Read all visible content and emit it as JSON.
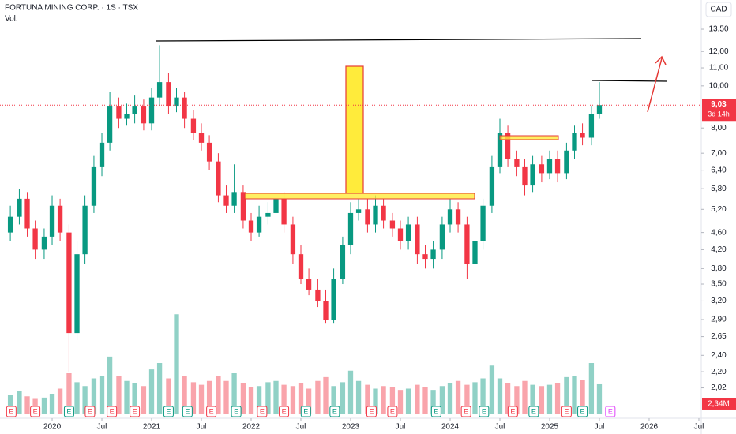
{
  "chart_data": {
    "type": "candlestick",
    "title": "FORTUNA MINING CORP. · 1S · TSX",
    "subtitle": "Vol.",
    "currency": "CAD",
    "log_scale": true,
    "grid": false,
    "up_color": "#089981",
    "down_color": "#f23645",
    "x": [
      2019.58,
      2019.67,
      2019.75,
      2019.83,
      2019.92,
      2020.0,
      2020.08,
      2020.17,
      2020.25,
      2020.33,
      2020.42,
      2020.5,
      2020.58,
      2020.67,
      2020.75,
      2020.83,
      2020.92,
      2021.0,
      2021.08,
      2021.17,
      2021.25,
      2021.33,
      2021.42,
      2021.5,
      2021.58,
      2021.67,
      2021.75,
      2021.83,
      2021.92,
      2022.0,
      2022.08,
      2022.17,
      2022.25,
      2022.33,
      2022.42,
      2022.5,
      2022.58,
      2022.67,
      2022.75,
      2022.83,
      2022.92,
      2023.0,
      2023.08,
      2023.17,
      2023.25,
      2023.33,
      2023.42,
      2023.5,
      2023.58,
      2023.67,
      2023.75,
      2023.83,
      2023.92,
      2024.0,
      2024.08,
      2024.17,
      2024.25,
      2024.33,
      2024.42,
      2024.5,
      2024.58,
      2024.67,
      2024.75,
      2024.83,
      2024.92,
      2025.0,
      2025.08,
      2025.17,
      2025.25,
      2025.33,
      2025.42,
      2025.5
    ],
    "open": [
      4.6,
      5.0,
      5.5,
      4.7,
      4.2,
      4.5,
      5.3,
      4.6,
      2.7,
      4.1,
      5.3,
      6.5,
      7.4,
      9.0,
      8.4,
      8.6,
      9.0,
      8.2,
      9.4,
      10.2,
      9.0,
      9.4,
      8.4,
      7.8,
      7.4,
      6.7,
      5.6,
      5.3,
      5.7,
      4.9,
      4.6,
      5.0,
      5.1,
      5.5,
      4.8,
      4.1,
      3.6,
      3.4,
      3.2,
      2.9,
      3.6,
      4.3,
      5.1,
      5.2,
      4.8,
      5.3,
      4.9,
      4.7,
      4.4,
      4.8,
      4.1,
      4.0,
      4.2,
      4.8,
      5.2,
      4.8,
      3.9,
      4.4,
      5.3,
      6.5,
      7.8,
      6.8,
      6.5,
      5.9,
      6.6,
      6.3,
      6.8,
      6.3,
      7.1,
      7.8,
      7.6,
      8.6
    ],
    "high": [
      5.3,
      5.8,
      5.7,
      4.9,
      4.7,
      5.6,
      5.5,
      4.8,
      4.4,
      5.6,
      6.9,
      7.8,
      9.7,
      9.4,
      9.1,
      9.5,
      9.3,
      9.9,
      12.4,
      10.7,
      9.9,
      9.7,
      8.8,
      8.2,
      7.7,
      7.0,
      5.9,
      6.6,
      5.9,
      5.1,
      5.3,
      5.4,
      5.8,
      5.7,
      5.0,
      4.3,
      3.8,
      3.6,
      3.4,
      3.8,
      4.5,
      5.4,
      5.5,
      5.5,
      5.6,
      5.5,
      5.1,
      4.9,
      5.0,
      5.0,
      4.3,
      4.4,
      5.0,
      5.5,
      5.4,
      5.0,
      4.6,
      5.5,
      6.9,
      8.4,
      8.1,
      7.1,
      6.8,
      6.9,
      6.9,
      7.1,
      7.1,
      7.4,
      8.1,
      8.2,
      9.0,
      10.2
    ],
    "low": [
      4.4,
      4.8,
      4.5,
      4.0,
      4.0,
      4.3,
      4.4,
      2.2,
      2.6,
      3.9,
      5.1,
      6.2,
      7.1,
      8.0,
      8.1,
      8.2,
      7.9,
      7.9,
      9.0,
      8.6,
      8.7,
      8.0,
      7.5,
      7.1,
      6.4,
      5.4,
      5.1,
      5.1,
      4.7,
      4.4,
      4.5,
      4.8,
      4.9,
      4.6,
      3.9,
      3.5,
      3.3,
      3.1,
      2.85,
      2.85,
      3.5,
      4.1,
      4.9,
      4.6,
      4.6,
      4.7,
      4.5,
      4.2,
      4.2,
      3.9,
      3.8,
      3.8,
      4.0,
      4.6,
      4.6,
      3.6,
      3.7,
      4.2,
      5.1,
      6.3,
      6.5,
      6.2,
      5.6,
      5.7,
      6.0,
      6.1,
      6.0,
      6.1,
      6.8,
      7.3,
      7.3,
      8.4
    ],
    "close": [
      5.0,
      5.5,
      4.7,
      4.2,
      4.5,
      5.3,
      4.6,
      2.7,
      4.1,
      5.3,
      6.5,
      7.4,
      9.0,
      8.4,
      8.6,
      9.0,
      8.2,
      9.4,
      10.2,
      9.0,
      9.4,
      8.4,
      7.8,
      7.4,
      6.7,
      5.6,
      5.3,
      5.7,
      4.9,
      4.6,
      5.0,
      5.1,
      5.5,
      4.8,
      4.1,
      3.6,
      3.4,
      3.2,
      2.9,
      3.6,
      4.3,
      5.1,
      5.2,
      4.8,
      5.3,
      4.9,
      4.7,
      4.4,
      4.8,
      4.1,
      4.0,
      4.2,
      4.8,
      5.2,
      4.8,
      3.9,
      4.4,
      5.3,
      6.5,
      7.8,
      6.8,
      6.5,
      5.9,
      6.6,
      6.3,
      6.8,
      6.3,
      7.1,
      7.8,
      7.6,
      8.6,
      9.03
    ],
    "volume": [
      1.5,
      1.8,
      1.4,
      1.2,
      1.3,
      1.6,
      2.0,
      3.2,
      2.5,
      2.2,
      2.8,
      3.0,
      4.5,
      3.0,
      2.6,
      2.4,
      2.2,
      3.5,
      4.0,
      2.8,
      7.8,
      3.0,
      2.5,
      2.3,
      2.6,
      3.0,
      2.6,
      3.2,
      2.4,
      2.1,
      2.2,
      2.5,
      2.6,
      2.3,
      2.2,
      2.4,
      2.0,
      2.6,
      2.9,
      2.2,
      2.5,
      3.4,
      2.6,
      2.3,
      2.0,
      2.2,
      2.1,
      1.9,
      2.0,
      2.3,
      2.1,
      1.9,
      2.2,
      2.4,
      2.6,
      2.3,
      2.5,
      2.8,
      3.8,
      2.8,
      2.4,
      2.2,
      2.6,
      2.3,
      2.2,
      2.3,
      2.4,
      2.9,
      3.0,
      2.7,
      4.0,
      2.34
    ],
    "vlim": [
      0,
      8
    ],
    "last_price": {
      "value": 9.03,
      "label": "9,03"
    },
    "countdown": "3d 14h",
    "last_volume": {
      "value": 2.34,
      "label": "2,34M"
    },
    "xlim": [
      2019.476,
      2026.524
    ],
    "ylim": [
      1.72,
      15.76
    ],
    "xticks": [
      {
        "value": 2020,
        "label": "2020"
      },
      {
        "value": 2020.5,
        "label": "Jul"
      },
      {
        "value": 2021,
        "label": "2021"
      },
      {
        "value": 2021.5,
        "label": "Jul"
      },
      {
        "value": 2022,
        "label": "2022"
      },
      {
        "value": 2022.5,
        "label": "Jul"
      },
      {
        "value": 2023,
        "label": "2023"
      },
      {
        "value": 2023.5,
        "label": "Jul"
      },
      {
        "value": 2024,
        "label": "2024"
      },
      {
        "value": 2024.5,
        "label": "Jul"
      },
      {
        "value": 2025,
        "label": "2025"
      },
      {
        "value": 2025.5,
        "label": "Jul"
      },
      {
        "value": 2026,
        "label": "2026"
      },
      {
        "value": 2026.5,
        "label": "Jul"
      }
    ],
    "yticks": [
      {
        "value": 13.5,
        "label": "13,50"
      },
      {
        "value": 12,
        "label": "12,00"
      },
      {
        "value": 11,
        "label": "11,00"
      },
      {
        "value": 10,
        "label": "10,00"
      },
      {
        "value": 8,
        "label": "8,00"
      },
      {
        "value": 7,
        "label": "7,00"
      },
      {
        "value": 6.4,
        "label": "6,40"
      },
      {
        "value": 5.8,
        "label": "5,80"
      },
      {
        "value": 5.2,
        "label": "5,20"
      },
      {
        "value": 4.6,
        "label": "4,60"
      },
      {
        "value": 4.2,
        "label": "4,20"
      },
      {
        "value": 3.8,
        "label": "3,80"
      },
      {
        "value": 3.5,
        "label": "3,50"
      },
      {
        "value": 3.2,
        "label": "3,20"
      },
      {
        "value": 2.9,
        "label": "2,90"
      },
      {
        "value": 2.65,
        "label": "2,65"
      },
      {
        "value": 2.4,
        "label": "2,40"
      },
      {
        "value": 2.2,
        "label": "2,20"
      },
      {
        "value": 2.02,
        "label": "2,02"
      }
    ],
    "earnings": [
      {
        "x": 2019.59,
        "label": "E",
        "color": "#f23645"
      },
      {
        "x": 2019.83,
        "label": "E",
        "color": "#f23645"
      },
      {
        "x": 2020.17,
        "label": "E",
        "color": "#089981"
      },
      {
        "x": 2020.38,
        "label": "E",
        "color": "#f23645"
      },
      {
        "x": 2020.6,
        "label": "E",
        "color": "#f23645"
      },
      {
        "x": 2020.83,
        "label": "E",
        "color": "#f23645"
      },
      {
        "x": 2021.17,
        "label": "E",
        "color": "#089981"
      },
      {
        "x": 2021.36,
        "label": "E",
        "color": "#089981"
      },
      {
        "x": 2021.6,
        "label": "E",
        "color": "#f23645"
      },
      {
        "x": 2021.85,
        "label": "E",
        "color": "#089981"
      },
      {
        "x": 2022.11,
        "label": "E",
        "color": "#f23645"
      },
      {
        "x": 2022.33,
        "label": "E",
        "color": "#f23645"
      },
      {
        "x": 2022.55,
        "label": "E",
        "color": "#089981"
      },
      {
        "x": 2022.84,
        "label": "E",
        "color": "#089981"
      },
      {
        "x": 2023.21,
        "label": "E",
        "color": "#f23645"
      },
      {
        "x": 2023.42,
        "label": "E",
        "color": "#f23645"
      },
      {
        "x": 2023.86,
        "label": "E",
        "color": "#089981"
      },
      {
        "x": 2024.16,
        "label": "E",
        "color": "#f23645"
      },
      {
        "x": 2024.34,
        "label": "E",
        "color": "#089981"
      },
      {
        "x": 2024.63,
        "label": "E",
        "color": "#f23645"
      },
      {
        "x": 2024.84,
        "label": "E",
        "color": "#089981"
      },
      {
        "x": 2025.17,
        "label": "E",
        "color": "#f23645"
      },
      {
        "x": 2025.33,
        "label": "E",
        "color": "#089981"
      },
      {
        "x": 2025.61,
        "label": "E",
        "color": "#e040fb"
      }
    ]
  }
}
